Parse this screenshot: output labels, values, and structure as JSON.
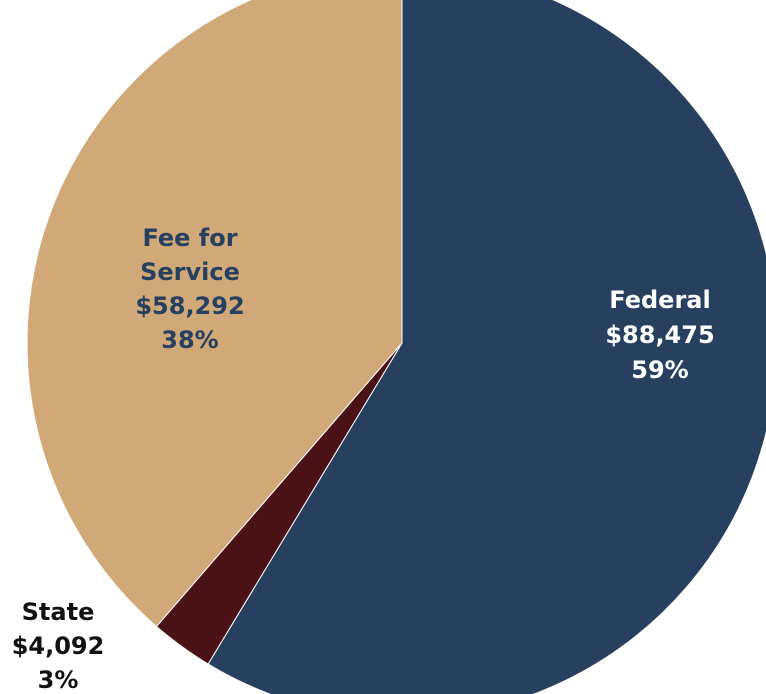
{
  "chart_data": {
    "type": "pie",
    "title": "",
    "slices": [
      {
        "name": "Federal",
        "value": 88475,
        "value_label": "$88,475",
        "percent_label": "59%",
        "color": "#27405f"
      },
      {
        "name": "State",
        "value": 4092,
        "value_label": "$4,092",
        "percent_label": "3%",
        "color": "#4a1216"
      },
      {
        "name": "Fee for Service",
        "value": 58292,
        "value_label": "$58,292",
        "percent_label": "38%",
        "color": "#d1a978"
      }
    ],
    "start_angle_deg": 0,
    "direction": "clockwise",
    "legend": "none",
    "labels": {
      "federal": {
        "line1": "Federal",
        "value": "$88,475",
        "percent": "59%"
      },
      "state": {
        "line1": "State",
        "value": "$4,092",
        "percent": "3%"
      },
      "fee": {
        "line1": "Fee for",
        "line2": "Service",
        "value": "$58,292",
        "percent": "38%"
      }
    }
  }
}
